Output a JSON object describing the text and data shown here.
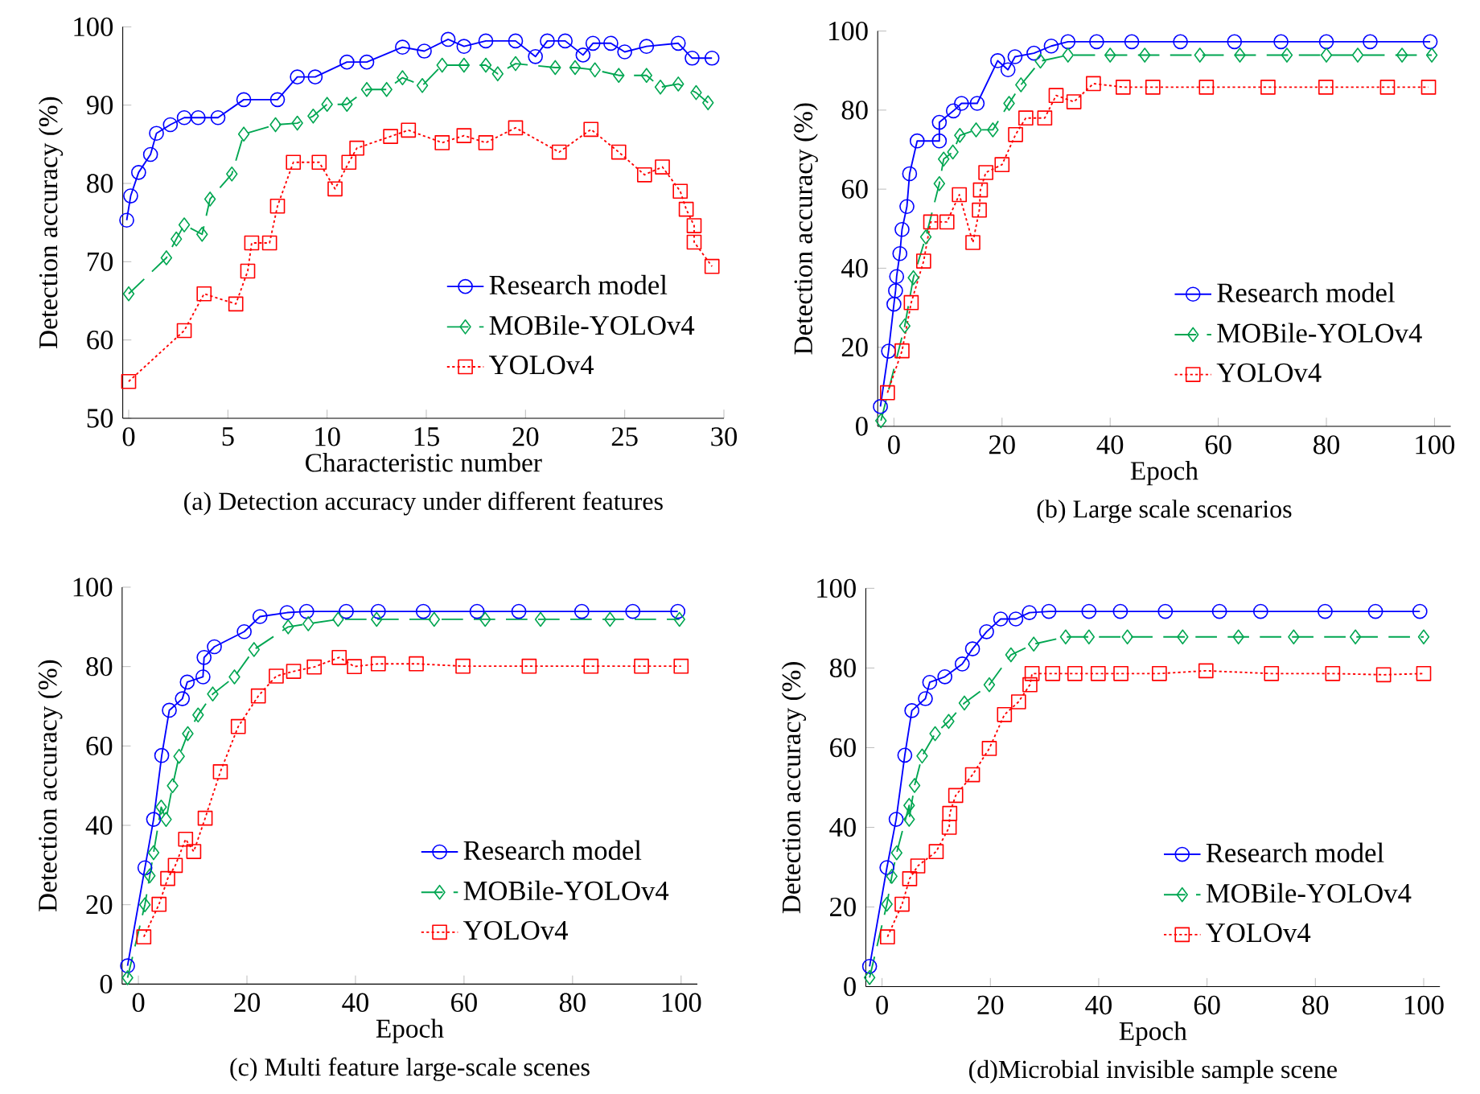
{
  "chart_data": [
    {
      "type": "line",
      "title": "(a) Detection accuracy under different features",
      "xlabel": "Characteristic number",
      "ylabel": "Detection accuracy (%)",
      "xlim": [
        -0.3,
        30
      ],
      "ylim": [
        50,
        100
      ],
      "xticks": [
        0,
        5,
        10,
        15,
        20,
        25,
        30
      ],
      "yticks": [
        50,
        60,
        70,
        80,
        90,
        100
      ],
      "legend": "bottom right",
      "grid": false,
      "series": [
        {
          "name": "Research model",
          "color": "#0000ff",
          "marker": "circle",
          "line_style": "solid",
          "x": [
            -0.1,
            0.1,
            0.5,
            1.1,
            1.4,
            2.1,
            2.8,
            3.5,
            4.5,
            5.8,
            7.5,
            8.5,
            9.4,
            11,
            12,
            13.8,
            14.9,
            16.1,
            16.9,
            18,
            19.5,
            20.5,
            21.1,
            22,
            22.9,
            23.4,
            24.3,
            25,
            26.1,
            27.7,
            28.4,
            29.4
          ],
          "values": [
            75.3,
            78.4,
            81.4,
            83.7,
            86.4,
            87.5,
            88.4,
            88.4,
            88.4,
            90.7,
            90.7,
            93.6,
            93.6,
            95.5,
            95.5,
            97.4,
            96.9,
            98.4,
            97.5,
            98.2,
            98.2,
            96.2,
            98.2,
            98.2,
            96.4,
            97.9,
            97.9,
            96.8,
            97.5,
            97.9,
            96,
            96
          ]
        },
        {
          "name": "MOBile-YOLOv4",
          "color": "#00a651",
          "marker": "diamond",
          "line_style": "dashed",
          "x": [
            0,
            1.9,
            2.4,
            2.8,
            3.7,
            4.1,
            5.2,
            5.8,
            7.4,
            8.5,
            9.3,
            10,
            11,
            12,
            13,
            13.8,
            14.8,
            15.8,
            16.9,
            18,
            18.6,
            19.5,
            21.5,
            22.5,
            23.5,
            24.7,
            26.1,
            26.8,
            27.7,
            28.6,
            29.2
          ],
          "values": [
            65.9,
            70.5,
            72.9,
            74.7,
            73.5,
            78,
            81.2,
            86.3,
            87.5,
            87.7,
            88.6,
            90.1,
            90.1,
            92,
            92,
            93.5,
            92.5,
            95.1,
            95.1,
            95.1,
            94,
            95.3,
            94.8,
            94.8,
            94.5,
            93.8,
            93.8,
            92.3,
            92.7,
            91.6,
            90.3
          ]
        },
        {
          "name": "YOLOv4",
          "color": "#ff0000",
          "marker": "square",
          "line_style": "dotted",
          "x": [
            0,
            2.8,
            3.8,
            5.4,
            6,
            6.2,
            7.1,
            7.5,
            8.3,
            9.6,
            10.4,
            11.1,
            11.5,
            13.2,
            14.1,
            15.8,
            16.9,
            18,
            19.5,
            21.7,
            23.3,
            24.7,
            26,
            26.9,
            27.8,
            28.1,
            28.5,
            28.5,
            29.4
          ],
          "values": [
            54.7,
            61.2,
            65.9,
            64.6,
            68.8,
            72.4,
            72.4,
            77.1,
            82.7,
            82.7,
            79.3,
            82.7,
            84.5,
            86,
            86.8,
            85.2,
            86.1,
            85.2,
            87.1,
            84,
            86.9,
            84,
            81.1,
            82.1,
            79,
            76.7,
            74.6,
            72.5,
            69.4
          ]
        }
      ]
    },
    {
      "type": "line",
      "title": "(b) Large scale scenarios",
      "xlabel": "Epoch",
      "ylabel": "Detection accuracy (%)",
      "xlim": [
        -3,
        103
      ],
      "ylim": [
        0,
        100
      ],
      "xticks": [
        0,
        20,
        40,
        60,
        80,
        100
      ],
      "yticks": [
        0,
        20,
        40,
        60,
        80,
        100
      ],
      "legend": "bottom right",
      "grid": false,
      "series": [
        {
          "name": "Research model",
          "color": "#0000ff",
          "marker": "circle",
          "line_style": "solid",
          "x": [
            -2.5,
            -1,
            0,
            0.3,
            0.5,
            1.1,
            1.5,
            2.4,
            2.9,
            4.3,
            8.4,
            8.4,
            11,
            12.5,
            15.4,
            19.2,
            21.1,
            22.4,
            25.9,
            29.1,
            32.2,
            37.5,
            44,
            53,
            63,
            71.6,
            80,
            88.1,
            99.2
          ],
          "values": [
            5,
            19,
            30.9,
            34.3,
            37.9,
            43.7,
            49.8,
            55.6,
            63.9,
            72.2,
            72.2,
            76.9,
            79.8,
            81.7,
            81.7,
            92.5,
            90.2,
            93.5,
            94.4,
            96.2,
            97.3,
            97.3,
            97.3,
            97.3,
            97.3,
            97.3,
            97.3,
            97.3,
            97.3
          ]
        },
        {
          "name": "MOBile-YOLOv4",
          "color": "#00a651",
          "marker": "diamond",
          "line_style": "dashed",
          "x": [
            -2.4,
            2,
            3.6,
            5.9,
            8.4,
            9.2,
            10.9,
            12.2,
            15.2,
            18.3,
            21.3,
            23.5,
            27.1,
            32.2,
            40,
            46.4,
            56.6,
            64,
            72.7,
            80,
            85.8,
            94,
            99.5
          ],
          "values": [
            1.4,
            25.4,
            37.6,
            47.9,
            61.4,
            67.6,
            69.4,
            73.6,
            75,
            75,
            81.7,
            86.4,
            92.4,
            93.9,
            93.9,
            93.9,
            93.9,
            93.9,
            93.9,
            93.9,
            93.9,
            93.9,
            93.9
          ]
        },
        {
          "name": "YOLOv4",
          "color": "#ff0000",
          "marker": "square",
          "line_style": "dotted",
          "x": [
            -1.2,
            1.5,
            3.2,
            5.5,
            6.8,
            9.8,
            12.1,
            14.6,
            15.8,
            16,
            17,
            20,
            22.5,
            24.4,
            27.9,
            30,
            33.3,
            36.9,
            42.4,
            47.9,
            57.8,
            69.2,
            79.9,
            91.3,
            98.9
          ],
          "values": [
            8.5,
            19.1,
            31.3,
            41.8,
            51.7,
            51.7,
            58.6,
            46.5,
            54.7,
            59.8,
            64.2,
            66.2,
            73.8,
            78,
            78,
            83.7,
            82.1,
            86.7,
            85.8,
            85.8,
            85.8,
            85.8,
            85.8,
            85.8,
            85.8
          ]
        }
      ]
    },
    {
      "type": "line",
      "title": "(c) Multi feature large-scale scenes",
      "xlabel": "Epoch",
      "ylabel": "Detection accuracy (%)",
      "xlim": [
        -3,
        103
      ],
      "ylim": [
        0,
        100
      ],
      "xticks": [
        0,
        20,
        40,
        60,
        80,
        100
      ],
      "yticks": [
        0,
        20,
        40,
        60,
        80,
        100
      ],
      "legend": "bottom right",
      "grid": false,
      "series": [
        {
          "name": "Research model",
          "color": "#0000ff",
          "marker": "circle",
          "line_style": "solid",
          "x": [
            -2,
            1.2,
            2.8,
            4.3,
            5.7,
            8.1,
            9,
            11.9,
            12.1,
            14,
            19.5,
            22.4,
            27.4,
            31,
            38.3,
            44.2,
            52.5,
            62.4,
            70.1,
            81.7,
            91.1,
            99.4
          ],
          "values": [
            4.6,
            29.3,
            41.5,
            57.6,
            69,
            71.9,
            76.1,
            77.4,
            82.3,
            85,
            88.8,
            92.6,
            93.6,
            93.9,
            93.9,
            93.9,
            93.9,
            93.9,
            93.9,
            93.9,
            93.9,
            93.9
          ]
        },
        {
          "name": "MOBile-YOLOv4",
          "color": "#00a651",
          "marker": "diamond",
          "line_style": "dashed",
          "x": [
            -2,
            1.2,
            2.1,
            2.8,
            4.2,
            5.1,
            6.3,
            7.5,
            9.1,
            11,
            13.7,
            17.7,
            21.3,
            27.6,
            31.3,
            36.8,
            43.9,
            54.5,
            63.9,
            74.1,
            86.9,
            99.7
          ],
          "values": [
            1.6,
            20,
            27.3,
            33.1,
            44.6,
            41.5,
            50,
            57.4,
            63.1,
            67.8,
            73.1,
            77.4,
            84.3,
            90,
            90.8,
            91.9,
            91.9,
            91.9,
            91.9,
            91.9,
            91.9,
            91.9
          ]
        },
        {
          "name": "YOLOv4",
          "color": "#ff0000",
          "marker": "square",
          "line_style": "dotted",
          "x": [
            1,
            3.8,
            5.4,
            6.8,
            8.7,
            10.2,
            12.3,
            15.1,
            18.4,
            22.1,
            25.4,
            28.6,
            32.4,
            37,
            39.8,
            44.2,
            51.2,
            59.8,
            72,
            83.4,
            92.7,
            100
          ],
          "values": [
            11.9,
            20.1,
            26.6,
            29.9,
            36.5,
            33.4,
            41.8,
            53.5,
            64.9,
            72.6,
            77.6,
            78.8,
            79.9,
            82.3,
            80,
            80.7,
            80.7,
            80.1,
            80.1,
            80.1,
            80.1,
            80.1
          ]
        }
      ]
    },
    {
      "type": "line",
      "title": "(d)Microbial invisible sample scene",
      "xlabel": "Epoch",
      "ylabel": "Detection accuracy (%)",
      "xlim": [
        -3,
        103
      ],
      "ylim": [
        0,
        100
      ],
      "xticks": [
        0,
        20,
        40,
        60,
        80,
        100
      ],
      "yticks": [
        0,
        20,
        40,
        60,
        80,
        100
      ],
      "legend": "bottom right",
      "grid": false,
      "series": [
        {
          "name": "Research model",
          "color": "#0000ff",
          "marker": "circle",
          "line_style": "solid",
          "x": [
            -2.3,
            0.9,
            2.6,
            4.2,
            5.5,
            8,
            8.8,
            11.6,
            14.8,
            16.7,
            19.3,
            21.9,
            24.7,
            27.2,
            30.8,
            38.2,
            44,
            52.3,
            62.3,
            69.9,
            81.8,
            91.1,
            99.3
          ],
          "values": [
            5.1,
            29.9,
            42,
            58.1,
            69.3,
            72.3,
            76.4,
            77.8,
            81,
            84.8,
            89.1,
            92.3,
            92.3,
            93.9,
            94.2,
            94.2,
            94.2,
            94.2,
            94.2,
            94.2,
            94.2,
            94.2,
            94.2
          ]
        },
        {
          "name": "MOBile-YOLOv4",
          "color": "#00a651",
          "marker": "diamond",
          "line_style": "dashed",
          "x": [
            -2.3,
            0.9,
            1.8,
            2.7,
            5,
            5,
            6,
            7.4,
            9.8,
            12.3,
            15.2,
            19.8,
            23.8,
            28,
            33.9,
            38.2,
            45.3,
            55.5,
            65.8,
            76,
            87.4,
            100
          ],
          "values": [
            2.3,
            20.7,
            27.7,
            33.6,
            45.5,
            42,
            50.5,
            57.9,
            63.5,
            66.6,
            71.2,
            75.8,
            83.3,
            86,
            87.8,
            87.8,
            87.8,
            87.8,
            87.8,
            87.8,
            87.8,
            87.8
          ]
        },
        {
          "name": "YOLOv4",
          "color": "#ff0000",
          "marker": "square",
          "line_style": "dotted",
          "x": [
            1,
            3.7,
            5.1,
            6.6,
            10,
            12.4,
            12.5,
            13.6,
            16.7,
            19.8,
            22.6,
            25.2,
            27.3,
            27.7,
            31.5,
            35.6,
            39.9,
            44.1,
            51.2,
            59.8,
            71.9,
            83.2,
            92.6,
            100
          ],
          "values": [
            12.5,
            20.7,
            27.1,
            30.3,
            33.9,
            40,
            43.5,
            48,
            53.2,
            59.8,
            68.3,
            71.5,
            75.8,
            78.6,
            78.6,
            78.6,
            78.6,
            78.6,
            78.6,
            79.3,
            78.6,
            78.6,
            78.3,
            78.6
          ]
        }
      ]
    }
  ]
}
